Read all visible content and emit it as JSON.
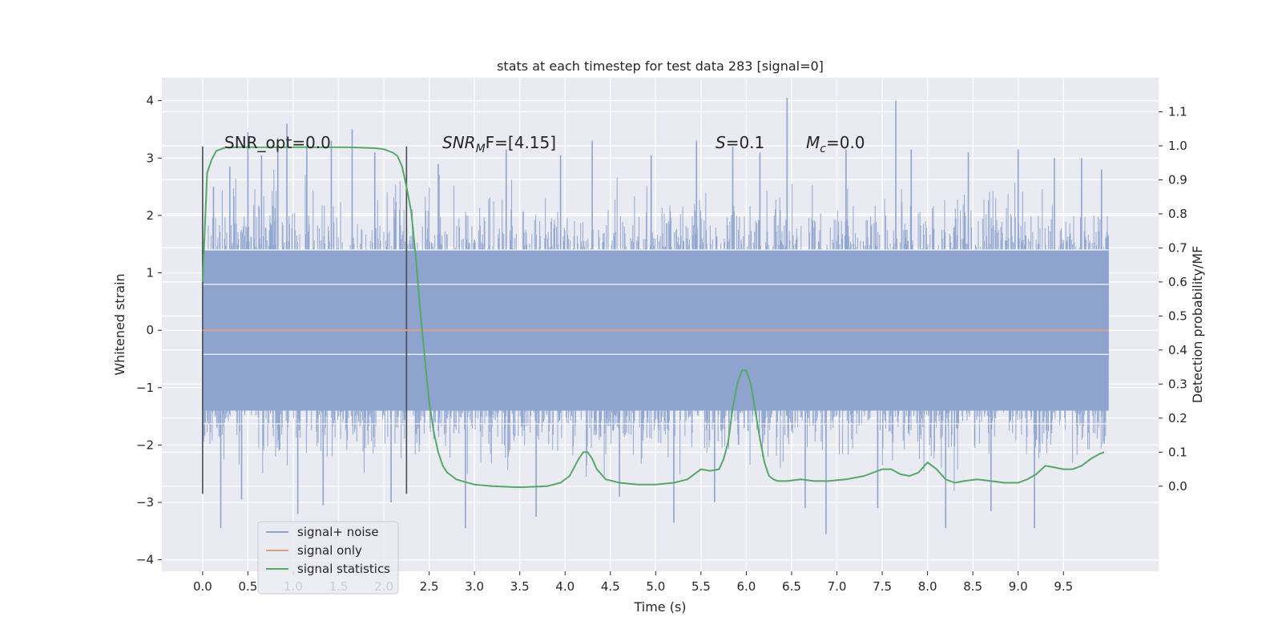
{
  "chart_data": {
    "type": "line",
    "title": "stats at each timestep for test data 283 [signal=0]",
    "xlabel": "Time (s)",
    "ylabel_left": "Whitened strain",
    "ylabel_right": "Detection probability/MF",
    "xlim": [
      -0.45,
      10.55
    ],
    "ylim_left": [
      -4.2,
      4.4
    ],
    "ylim_right": [
      -0.25,
      1.2
    ],
    "xticks": [
      "0.0",
      "0.5",
      "1.0",
      "1.5",
      "2.0",
      "2.5",
      "3.0",
      "3.5",
      "4.0",
      "4.5",
      "5.0",
      "5.5",
      "6.0",
      "6.5",
      "7.0",
      "7.5",
      "8.0",
      "8.5",
      "9.0",
      "9.5"
    ],
    "yticks_left": [
      "4",
      "3",
      "2",
      "1",
      "0",
      "−1",
      "−2",
      "−3",
      "−4"
    ],
    "yticks_right": [
      "1.1",
      "1.0",
      "0.9",
      "0.8",
      "0.7",
      "0.6",
      "0.5",
      "0.4",
      "0.3",
      "0.2",
      "0.1",
      "0.0"
    ],
    "grid": true,
    "legend_position": "lower-left",
    "annotations": {
      "snr_opt": "SNR_opt=0.0",
      "snr_mf_main": "SNR",
      "snr_mf_sub": "M",
      "snr_mf_rest": "F=[4.15]",
      "s_main": "S",
      "s_rest": "=0.1",
      "mc_main": "M",
      "mc_sub": "c",
      "mc_rest": "=0.0"
    },
    "vlines_x": [
      0.0,
      2.25
    ],
    "noise_band": {
      "x_start": 0.0,
      "x_end": 10.0,
      "typical_range": [
        -2.4,
        2.4
      ],
      "extremes": [
        -3.7,
        4.05
      ]
    },
    "noise_spikes": [
      {
        "x": 0.12,
        "y": 2.5
      },
      {
        "x": 0.2,
        "y": -3.45
      },
      {
        "x": 0.3,
        "y": 2.85
      },
      {
        "x": 0.43,
        "y": -2.95
      },
      {
        "x": 0.5,
        "y": 3.45
      },
      {
        "x": 0.65,
        "y": 3.05
      },
      {
        "x": 0.83,
        "y": 3.35
      },
      {
        "x": 0.93,
        "y": 3.6
      },
      {
        "x": 1.05,
        "y": -3.2
      },
      {
        "x": 1.15,
        "y": 3.25
      },
      {
        "x": 1.33,
        "y": -3.05
      },
      {
        "x": 1.42,
        "y": 3.3
      },
      {
        "x": 1.65,
        "y": 3.5
      },
      {
        "x": 1.9,
        "y": 3.1
      },
      {
        "x": 2.08,
        "y": -3.0
      },
      {
        "x": 2.6,
        "y": 2.9
      },
      {
        "x": 2.9,
        "y": -3.45
      },
      {
        "x": 3.35,
        "y": 3.15
      },
      {
        "x": 3.68,
        "y": -3.25
      },
      {
        "x": 3.95,
        "y": 3.05
      },
      {
        "x": 4.3,
        "y": 3.3
      },
      {
        "x": 4.6,
        "y": -2.9
      },
      {
        "x": 4.95,
        "y": 3.05
      },
      {
        "x": 5.2,
        "y": -3.35
      },
      {
        "x": 5.45,
        "y": 3.3
      },
      {
        "x": 5.65,
        "y": -3.0
      },
      {
        "x": 5.85,
        "y": 3.2
      },
      {
        "x": 6.15,
        "y": 3.1
      },
      {
        "x": 6.45,
        "y": 4.05
      },
      {
        "x": 6.65,
        "y": -3.1
      },
      {
        "x": 6.88,
        "y": -3.55
      },
      {
        "x": 7.1,
        "y": 3.15
      },
      {
        "x": 7.45,
        "y": -3.1
      },
      {
        "x": 7.65,
        "y": 4.0
      },
      {
        "x": 7.82,
        "y": 3.15
      },
      {
        "x": 8.2,
        "y": -3.45
      },
      {
        "x": 8.45,
        "y": 3.1
      },
      {
        "x": 8.7,
        "y": -3.15
      },
      {
        "x": 9.0,
        "y": 3.15
      },
      {
        "x": 9.18,
        "y": -3.45
      },
      {
        "x": 9.4,
        "y": 3.0
      },
      {
        "x": 9.7,
        "y": 3.0
      },
      {
        "x": 9.92,
        "y": 2.8
      }
    ],
    "series": [
      {
        "name": "signal+ noise",
        "color": "#8ea4cf",
        "axis": "left",
        "kind": "noise"
      },
      {
        "name": "signal only",
        "color": "#dd9f86",
        "axis": "left",
        "x": [
          0.0,
          10.0
        ],
        "y": [
          0.0,
          0.0
        ]
      },
      {
        "name": "signal statistics",
        "color": "#55a868",
        "axis": "right",
        "x": [
          0.0,
          0.05,
          0.1,
          0.15,
          0.25,
          0.4,
          0.6,
          0.8,
          1.0,
          1.3,
          1.6,
          1.9,
          2.0,
          2.1,
          2.15,
          2.2,
          2.25,
          2.3,
          2.35,
          2.4,
          2.45,
          2.5,
          2.55,
          2.6,
          2.65,
          2.7,
          2.75,
          2.8,
          2.9,
          3.0,
          3.2,
          3.5,
          3.8,
          3.95,
          4.05,
          4.15,
          4.2,
          4.25,
          4.3,
          4.35,
          4.45,
          4.6,
          4.8,
          5.0,
          5.2,
          5.35,
          5.45,
          5.5,
          5.6,
          5.7,
          5.75,
          5.8,
          5.85,
          5.9,
          5.95,
          6.0,
          6.05,
          6.1,
          6.15,
          6.2,
          6.25,
          6.3,
          6.35,
          6.45,
          6.6,
          6.75,
          6.9,
          7.1,
          7.3,
          7.5,
          7.6,
          7.7,
          7.8,
          7.9,
          8.0,
          8.1,
          8.2,
          8.3,
          8.4,
          8.55,
          8.7,
          8.85,
          9.0,
          9.1,
          9.2,
          9.3,
          9.4,
          9.5,
          9.6,
          9.7,
          9.8,
          9.9,
          9.95
        ],
        "y": [
          0.6,
          0.92,
          0.96,
          0.985,
          0.995,
          0.996,
          0.996,
          0.996,
          0.996,
          0.996,
          0.996,
          0.993,
          0.99,
          0.98,
          0.97,
          0.94,
          0.88,
          0.81,
          0.68,
          0.52,
          0.38,
          0.25,
          0.16,
          0.1,
          0.06,
          0.04,
          0.03,
          0.02,
          0.012,
          0.005,
          0.0,
          -0.003,
          0.0,
          0.01,
          0.03,
          0.08,
          0.1,
          0.1,
          0.08,
          0.05,
          0.02,
          0.01,
          0.005,
          0.005,
          0.01,
          0.02,
          0.04,
          0.05,
          0.045,
          0.05,
          0.08,
          0.13,
          0.23,
          0.3,
          0.34,
          0.34,
          0.3,
          0.22,
          0.14,
          0.07,
          0.03,
          0.02,
          0.015,
          0.015,
          0.02,
          0.015,
          0.015,
          0.02,
          0.03,
          0.05,
          0.05,
          0.035,
          0.03,
          0.04,
          0.07,
          0.05,
          0.02,
          0.01,
          0.015,
          0.02,
          0.015,
          0.01,
          0.01,
          0.02,
          0.035,
          0.06,
          0.055,
          0.05,
          0.05,
          0.06,
          0.08,
          0.095,
          0.1
        ]
      }
    ]
  }
}
